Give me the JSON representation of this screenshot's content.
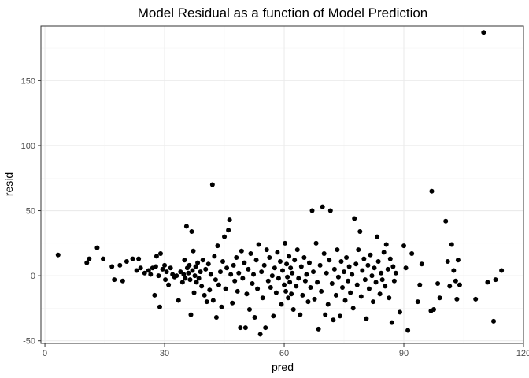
{
  "chart_data": {
    "type": "scatter",
    "title": "Model Residual as a function of Model Prediction",
    "xlabel": "pred",
    "ylabel": "resid",
    "xlim": [
      -1,
      120
    ],
    "ylim": [
      -52,
      192
    ],
    "xticks": [
      0,
      30,
      60,
      90,
      120
    ],
    "yticks": [
      -50,
      0,
      50,
      100,
      150
    ],
    "grid": true,
    "legend": "none",
    "point_color": "#000000",
    "panel_border_color": "#333333",
    "grid_major_color": "#ebebeb",
    "grid_minor_color": "#f5f5f5",
    "points": [
      {
        "x": 3.3,
        "y": 16
      },
      {
        "x": 10.5,
        "y": 10
      },
      {
        "x": 11.1,
        "y": 13
      },
      {
        "x": 13.1,
        "y": 21.5
      },
      {
        "x": 14.6,
        "y": 13
      },
      {
        "x": 16.8,
        "y": 7
      },
      {
        "x": 17.4,
        "y": -3
      },
      {
        "x": 18.8,
        "y": 8
      },
      {
        "x": 19.5,
        "y": -4
      },
      {
        "x": 20.5,
        "y": 11
      },
      {
        "x": 22,
        "y": 13
      },
      {
        "x": 23,
        "y": 4
      },
      {
        "x": 23.5,
        "y": 13
      },
      {
        "x": 24,
        "y": 6
      },
      {
        "x": 25,
        "y": 2
      },
      {
        "x": 26,
        "y": 4
      },
      {
        "x": 26.5,
        "y": 1
      },
      {
        "x": 27,
        "y": 6
      },
      {
        "x": 27.5,
        "y": -15
      },
      {
        "x": 27.8,
        "y": 7
      },
      {
        "x": 28,
        "y": 15
      },
      {
        "x": 28.5,
        "y": 0
      },
      {
        "x": 28.8,
        "y": -24
      },
      {
        "x": 29,
        "y": 17
      },
      {
        "x": 29.5,
        "y": 5
      },
      {
        "x": 30,
        "y": 8
      },
      {
        "x": 30.2,
        "y": -3
      },
      {
        "x": 30.5,
        "y": 3
      },
      {
        "x": 31,
        "y": -7
      },
      {
        "x": 31.5,
        "y": 6
      },
      {
        "x": 32,
        "y": 1
      },
      {
        "x": 32.5,
        "y": -1
      },
      {
        "x": 33,
        "y": 0
      },
      {
        "x": 33.5,
        "y": -19
      },
      {
        "x": 34,
        "y": 3
      },
      {
        "x": 34.5,
        "y": -5
      },
      {
        "x": 34.8,
        "y": 1
      },
      {
        "x": 35,
        "y": 12
      },
      {
        "x": 35.2,
        "y": -2
      },
      {
        "x": 35.5,
        "y": 38
      },
      {
        "x": 35.7,
        "y": 6
      },
      {
        "x": 36,
        "y": 2
      },
      {
        "x": 36.2,
        "y": 8
      },
      {
        "x": 36.4,
        "y": -3
      },
      {
        "x": 36.6,
        "y": -30
      },
      {
        "x": 36.8,
        "y": 34
      },
      {
        "x": 37,
        "y": 4
      },
      {
        "x": 37.2,
        "y": 19
      },
      {
        "x": 37.4,
        "y": -13
      },
      {
        "x": 37.6,
        "y": 0
      },
      {
        "x": 37.8,
        "y": 7
      },
      {
        "x": 38,
        "y": -5
      },
      {
        "x": 38.3,
        "y": 10
      },
      {
        "x": 38.6,
        "y": -2
      },
      {
        "x": 39,
        "y": 3
      },
      {
        "x": 39.3,
        "y": -8
      },
      {
        "x": 39.6,
        "y": 12
      },
      {
        "x": 40,
        "y": -15
      },
      {
        "x": 40.3,
        "y": 5
      },
      {
        "x": 40.6,
        "y": -20
      },
      {
        "x": 41,
        "y": 9
      },
      {
        "x": 41.3,
        "y": -11
      },
      {
        "x": 41.6,
        "y": 1
      },
      {
        "x": 42,
        "y": 70
      },
      {
        "x": 42.2,
        "y": -19
      },
      {
        "x": 42.5,
        "y": 15
      },
      {
        "x": 42.8,
        "y": -3
      },
      {
        "x": 43,
        "y": -32
      },
      {
        "x": 43.3,
        "y": 23
      },
      {
        "x": 43.6,
        "y": -7
      },
      {
        "x": 44,
        "y": 3
      },
      {
        "x": 44.3,
        "y": -24
      },
      {
        "x": 44.6,
        "y": 11
      },
      {
        "x": 45,
        "y": 30
      },
      {
        "x": 45.3,
        "y": -10
      },
      {
        "x": 45.6,
        "y": 6
      },
      {
        "x": 46,
        "y": 35
      },
      {
        "x": 46.3,
        "y": 43
      },
      {
        "x": 46.6,
        "y": 1
      },
      {
        "x": 47,
        "y": -21
      },
      {
        "x": 47.3,
        "y": 8
      },
      {
        "x": 47.6,
        "y": -4
      },
      {
        "x": 48,
        "y": 14
      },
      {
        "x": 48.3,
        "y": -12
      },
      {
        "x": 48.6,
        "y": 2
      },
      {
        "x": 49,
        "y": -40
      },
      {
        "x": 49.3,
        "y": 19
      },
      {
        "x": 49.6,
        "y": -2
      },
      {
        "x": 50,
        "y": 10
      },
      {
        "x": 50.3,
        "y": -40
      },
      {
        "x": 50.6,
        "y": -14
      },
      {
        "x": 51,
        "y": 5
      },
      {
        "x": 51.3,
        "y": -26
      },
      {
        "x": 51.6,
        "y": 17
      },
      {
        "x": 52,
        "y": -6
      },
      {
        "x": 52.3,
        "y": 1
      },
      {
        "x": 52.6,
        "y": -32
      },
      {
        "x": 53,
        "y": 12
      },
      {
        "x": 53.3,
        "y": -10
      },
      {
        "x": 53.6,
        "y": 24
      },
      {
        "x": 54,
        "y": -45
      },
      {
        "x": 54.3,
        "y": 3
      },
      {
        "x": 54.6,
        "y": -17
      },
      {
        "x": 55,
        "y": 8
      },
      {
        "x": 55.3,
        "y": -40
      },
      {
        "x": 55.6,
        "y": 20
      },
      {
        "x": 56,
        "y": -4
      },
      {
        "x": 56.3,
        "y": 14
      },
      {
        "x": 56.6,
        "y": -9
      },
      {
        "x": 57,
        "y": 0
      },
      {
        "x": 57.3,
        "y": -31
      },
      {
        "x": 57.6,
        "y": 6
      },
      {
        "x": 58,
        "y": -13
      },
      {
        "x": 58.3,
        "y": 18
      },
      {
        "x": 58.6,
        "y": -2
      },
      {
        "x": 59,
        "y": 11
      },
      {
        "x": 59.3,
        "y": -22
      },
      {
        "x": 59.6,
        "y": 4
      },
      {
        "x": 60,
        "y": -7
      },
      {
        "x": 60.2,
        "y": 25
      },
      {
        "x": 60.4,
        "y": -12
      },
      {
        "x": 60.6,
        "y": 9
      },
      {
        "x": 60.8,
        "y": -1
      },
      {
        "x": 61,
        "y": -17
      },
      {
        "x": 61.2,
        "y": 15
      },
      {
        "x": 61.4,
        "y": -5
      },
      {
        "x": 61.6,
        "y": 6
      },
      {
        "x": 61.8,
        "y": -14
      },
      {
        "x": 62,
        "y": 2
      },
      {
        "x": 62.3,
        "y": -26
      },
      {
        "x": 62.6,
        "y": 12
      },
      {
        "x": 63,
        "y": -8
      },
      {
        "x": 63.3,
        "y": 20
      },
      {
        "x": 63.6,
        "y": -2
      },
      {
        "x": 64,
        "y": -30
      },
      {
        "x": 64.3,
        "y": 7
      },
      {
        "x": 64.6,
        "y": -15
      },
      {
        "x": 65,
        "y": 14
      },
      {
        "x": 65.3,
        "y": -4
      },
      {
        "x": 65.6,
        "y": 1
      },
      {
        "x": 66,
        "y": -20
      },
      {
        "x": 66.3,
        "y": 10
      },
      {
        "x": 66.6,
        "y": -9
      },
      {
        "x": 67,
        "y": 50
      },
      {
        "x": 67.3,
        "y": 3
      },
      {
        "x": 67.6,
        "y": -18
      },
      {
        "x": 68,
        "y": 25
      },
      {
        "x": 68.3,
        "y": -5
      },
      {
        "x": 68.6,
        "y": -41
      },
      {
        "x": 69,
        "y": 8
      },
      {
        "x": 69.3,
        "y": -12
      },
      {
        "x": 69.6,
        "y": 53
      },
      {
        "x": 70,
        "y": 17
      },
      {
        "x": 70.3,
        "y": -30
      },
      {
        "x": 70.6,
        "y": 2
      },
      {
        "x": 71,
        "y": -22
      },
      {
        "x": 71.3,
        "y": 12
      },
      {
        "x": 71.6,
        "y": 50
      },
      {
        "x": 72,
        "y": -6
      },
      {
        "x": 72.3,
        "y": -34
      },
      {
        "x": 72.6,
        "y": 5
      },
      {
        "x": 73,
        "y": -15
      },
      {
        "x": 73.3,
        "y": 20
      },
      {
        "x": 73.6,
        "y": -1
      },
      {
        "x": 74,
        "y": -31
      },
      {
        "x": 74.3,
        "y": 11
      },
      {
        "x": 74.6,
        "y": -9
      },
      {
        "x": 75,
        "y": 3
      },
      {
        "x": 75.3,
        "y": -19
      },
      {
        "x": 75.6,
        "y": 14
      },
      {
        "x": 76,
        "y": -4
      },
      {
        "x": 76.3,
        "y": 7
      },
      {
        "x": 76.6,
        "y": -13
      },
      {
        "x": 77,
        "y": 1
      },
      {
        "x": 77.3,
        "y": -25
      },
      {
        "x": 77.6,
        "y": 44
      },
      {
        "x": 78,
        "y": 9
      },
      {
        "x": 78.3,
        "y": -7
      },
      {
        "x": 78.6,
        "y": 20
      },
      {
        "x": 79,
        "y": 34
      },
      {
        "x": 79.3,
        "y": -16
      },
      {
        "x": 79.6,
        "y": 4
      },
      {
        "x": 80,
        "y": 13
      },
      {
        "x": 80.3,
        "y": -3
      },
      {
        "x": 80.6,
        "y": -33
      },
      {
        "x": 81,
        "y": 8
      },
      {
        "x": 81.3,
        "y": -10
      },
      {
        "x": 81.6,
        "y": 16
      },
      {
        "x": 82,
        "y": 0
      },
      {
        "x": 82.3,
        "y": -20
      },
      {
        "x": 82.6,
        "y": 6
      },
      {
        "x": 83,
        "y": -5
      },
      {
        "x": 83.3,
        "y": 30
      },
      {
        "x": 83.6,
        "y": 11
      },
      {
        "x": 84,
        "y": -14
      },
      {
        "x": 84.3,
        "y": 2
      },
      {
        "x": 84.6,
        "y": -3
      },
      {
        "x": 85,
        "y": 18
      },
      {
        "x": 85.3,
        "y": -8
      },
      {
        "x": 85.6,
        "y": 24
      },
      {
        "x": 86,
        "y": 5
      },
      {
        "x": 86.3,
        "y": -17
      },
      {
        "x": 86.6,
        "y": 13
      },
      {
        "x": 87,
        "y": -36
      },
      {
        "x": 87.3,
        "y": 7
      },
      {
        "x": 87.6,
        "y": -4
      },
      {
        "x": 88,
        "y": 2
      },
      {
        "x": 89,
        "y": -28
      },
      {
        "x": 90,
        "y": 23
      },
      {
        "x": 90.5,
        "y": 6
      },
      {
        "x": 91,
        "y": -42
      },
      {
        "x": 92,
        "y": 17
      },
      {
        "x": 93.5,
        "y": -20
      },
      {
        "x": 94,
        "y": -7
      },
      {
        "x": 94.5,
        "y": 9
      },
      {
        "x": 96.8,
        "y": -27
      },
      {
        "x": 97,
        "y": 65
      },
      {
        "x": 97.5,
        "y": -26
      },
      {
        "x": 98.5,
        "y": -6
      },
      {
        "x": 99,
        "y": -17
      },
      {
        "x": 100.5,
        "y": 42
      },
      {
        "x": 101,
        "y": 11
      },
      {
        "x": 101.5,
        "y": -8
      },
      {
        "x": 102,
        "y": 24
      },
      {
        "x": 102.5,
        "y": 4
      },
      {
        "x": 103,
        "y": -4
      },
      {
        "x": 103.3,
        "y": -18
      },
      {
        "x": 103.6,
        "y": 12
      },
      {
        "x": 104,
        "y": -7
      },
      {
        "x": 108,
        "y": -18
      },
      {
        "x": 110,
        "y": 187
      },
      {
        "x": 111,
        "y": -5
      },
      {
        "x": 112.5,
        "y": -35
      },
      {
        "x": 113,
        "y": -3
      },
      {
        "x": 114.5,
        "y": 4
      }
    ]
  }
}
